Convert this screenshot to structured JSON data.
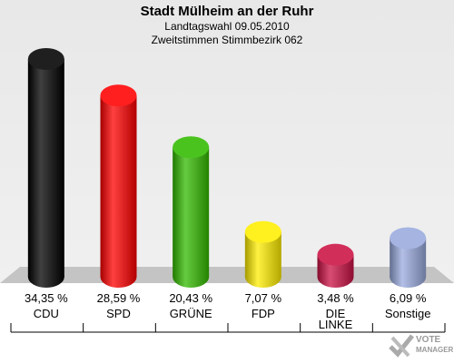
{
  "header": {
    "title": "Stadt Mülheim an der Ruhr",
    "subtitle1": "Landtagswahl 09.05.2010",
    "subtitle2": "Zweitstimmen Stimmbezirk 062"
  },
  "chart_data": {
    "type": "bar",
    "categories": [
      "CDU",
      "SPD",
      "GRÜNE",
      "FDP",
      "DIE LINKE",
      "Sonstige"
    ],
    "values": [
      34.35,
      28.59,
      20.43,
      7.07,
      3.48,
      6.09
    ],
    "value_labels": [
      "34,35 %",
      "28,59 %",
      "20,43 %",
      "7,07 %",
      "3,48 %",
      "6,09 %"
    ],
    "colors": [
      "#000000",
      "#ff0000",
      "#33bb00",
      "#ffee00",
      "#cc1144",
      "#99aadd"
    ],
    "ylim": [
      0,
      34.35
    ]
  },
  "logo": {
    "line1": "VOTE",
    "line2": "MANAGER"
  }
}
